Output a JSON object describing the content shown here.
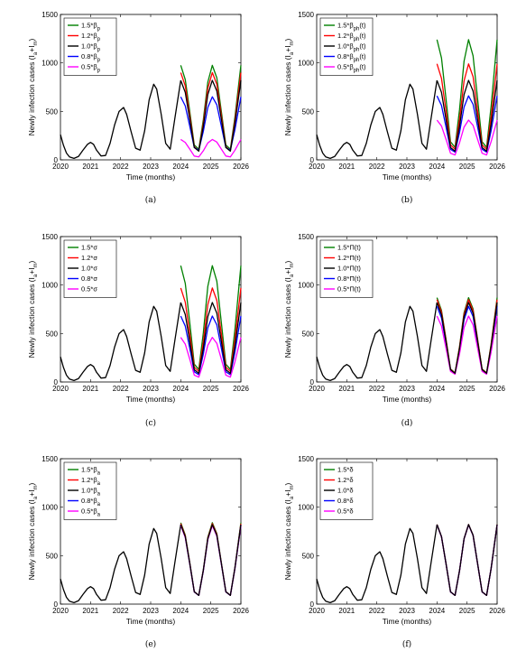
{
  "chart_data": [
    {
      "type": "line",
      "caption": "(a)",
      "xlabel": "Time (months)",
      "ylabel": "Newly infection cases (I_a+I_m)",
      "xlim": [
        2020,
        2026
      ],
      "ylim": [
        0,
        1500
      ],
      "xticks": [
        "2020",
        "2021",
        "2022",
        "2023",
        "2024",
        "2025",
        "2026"
      ],
      "yticks": [
        "0",
        "500",
        "1000",
        "1500"
      ],
      "legend_position": "top-left",
      "series": [
        {
          "name": "1.5*β_p",
          "color": "#008000",
          "peak": 975,
          "trough": 110
        },
        {
          "name": "1.2*β_p",
          "color": "#ff0000",
          "peak": 900,
          "trough": 95
        },
        {
          "name": "1.0*β_p",
          "color": "#000000",
          "peak": 820,
          "trough": 90
        },
        {
          "name": "0.8*β_p",
          "color": "#0000ff",
          "peak": 650,
          "trough": 100
        },
        {
          "name": "0.5*β_p",
          "color": "#ff00ff",
          "peak": 210,
          "trough": 30
        }
      ]
    },
    {
      "type": "line",
      "caption": "(b)",
      "xlabel": "Time (months)",
      "ylabel": "Newly infection cases (I_a+I_m)",
      "xlim": [
        2020,
        2026
      ],
      "ylim": [
        0,
        1500
      ],
      "xticks": [
        "2020",
        "2021",
        "2022",
        "2023",
        "2024",
        "2025",
        "2026"
      ],
      "yticks": [
        "0",
        "500",
        "1000",
        "1500"
      ],
      "legend_position": "top-left",
      "series": [
        {
          "name": "1.5*β_ph(t)",
          "color": "#008000",
          "peak": 1240,
          "trough": 130
        },
        {
          "name": "1.2*β_ph(t)",
          "color": "#ff0000",
          "peak": 990,
          "trough": 110
        },
        {
          "name": "1.0*β_ph(t)",
          "color": "#000000",
          "peak": 820,
          "trough": 90
        },
        {
          "name": "0.8*β_ph(t)",
          "color": "#0000ff",
          "peak": 660,
          "trough": 80
        },
        {
          "name": "0.5*β_ph(t)",
          "color": "#ff00ff",
          "peak": 410,
          "trough": 50
        }
      ]
    },
    {
      "type": "line",
      "caption": "(c)",
      "xlabel": "Time (months)",
      "ylabel": "Newly infection cases (I_a+I_m)",
      "xlim": [
        2020,
        2026
      ],
      "ylim": [
        0,
        1500
      ],
      "xticks": [
        "2020",
        "2021",
        "2022",
        "2023",
        "2024",
        "2025",
        "2026"
      ],
      "yticks": [
        "0",
        "500",
        "1000",
        "1500"
      ],
      "legend_position": "top-left",
      "series": [
        {
          "name": "1.5*σ",
          "color": "#008000",
          "peak": 1200,
          "trough": 130
        },
        {
          "name": "1.2*σ",
          "color": "#ff0000",
          "peak": 970,
          "trough": 110
        },
        {
          "name": "1.0*σ",
          "color": "#000000",
          "peak": 820,
          "trough": 90
        },
        {
          "name": "0.8*σ",
          "color": "#0000ff",
          "peak": 680,
          "trough": 75
        },
        {
          "name": "0.5*σ",
          "color": "#ff00ff",
          "peak": 460,
          "trough": 50
        }
      ]
    },
    {
      "type": "line",
      "caption": "(d)",
      "xlabel": "Time (months)",
      "ylabel": "Newly infection cases (I_a+I_m)",
      "xlim": [
        2020,
        2026
      ],
      "ylim": [
        0,
        1500
      ],
      "xticks": [
        "2020",
        "2021",
        "2022",
        "2023",
        "2024",
        "2025",
        "2026"
      ],
      "yticks": [
        "0",
        "500",
        "1000",
        "1500"
      ],
      "legend_position": "top-left",
      "series": [
        {
          "name": "1.5*Π(t)",
          "color": "#008000",
          "peak": 870,
          "trough": 95
        },
        {
          "name": "1.2*Π(t)",
          "color": "#ff0000",
          "peak": 850,
          "trough": 92
        },
        {
          "name": "1.0*Π(t)",
          "color": "#000000",
          "peak": 820,
          "trough": 90
        },
        {
          "name": "0.8*Π(t)",
          "color": "#0000ff",
          "peak": 780,
          "trough": 85
        },
        {
          "name": "0.5*Π(t)",
          "color": "#ff00ff",
          "peak": 680,
          "trough": 80
        }
      ]
    },
    {
      "type": "line",
      "caption": "(e)",
      "xlabel": "Time (months)",
      "ylabel": "Newly infection cases (I_a+I_m)",
      "xlim": [
        2020,
        2026
      ],
      "ylim": [
        0,
        1500
      ],
      "xticks": [
        "2020",
        "2021",
        "2022",
        "2023",
        "2024",
        "2025",
        "2026"
      ],
      "yticks": [
        "0",
        "500",
        "1000",
        "1500"
      ],
      "legend_position": "top-left",
      "series": [
        {
          "name": "1.5*β_a",
          "color": "#008000",
          "peak": 840,
          "trough": 92
        },
        {
          "name": "1.2*β_a",
          "color": "#ff0000",
          "peak": 830,
          "trough": 91
        },
        {
          "name": "1.0*β_a",
          "color": "#000000",
          "peak": 820,
          "trough": 90
        },
        {
          "name": "0.8*β_a",
          "color": "#0000ff",
          "peak": 815,
          "trough": 90
        },
        {
          "name": "0.5*β_a",
          "color": "#ff00ff",
          "peak": 810,
          "trough": 90
        }
      ]
    },
    {
      "type": "line",
      "caption": "(f)",
      "xlabel": "Time (months)",
      "ylabel": "Newly infection cases (I_a+I_m)",
      "xlim": [
        2020,
        2026
      ],
      "ylim": [
        0,
        1500
      ],
      "xticks": [
        "2020",
        "2021",
        "2022",
        "2023",
        "2024",
        "2025",
        "2026"
      ],
      "yticks": [
        "0",
        "500",
        "1000",
        "1500"
      ],
      "legend_position": "top-left",
      "series": [
        {
          "name": "1.5*δ",
          "color": "#008000",
          "peak": 822,
          "trough": 90
        },
        {
          "name": "1.2*δ",
          "color": "#ff0000",
          "peak": 821,
          "trough": 90
        },
        {
          "name": "1.0*δ",
          "color": "#000000",
          "peak": 820,
          "trough": 90
        },
        {
          "name": "0.8*δ",
          "color": "#0000ff",
          "peak": 819,
          "trough": 90
        },
        {
          "name": "0.5*δ",
          "color": "#ff00ff",
          "peak": 818,
          "trough": 90
        }
      ]
    }
  ],
  "baseline": {
    "x": [
      2020.0,
      2020.1,
      2020.2,
      2020.3,
      2020.45,
      2020.6,
      2020.75,
      2020.9,
      2021.0,
      2021.1,
      2021.2,
      2021.35,
      2021.5,
      2021.65,
      2021.8,
      2021.95,
      2022.1,
      2022.2,
      2022.35,
      2022.5,
      2022.65,
      2022.8,
      2022.95,
      2023.1,
      2023.2,
      2023.35,
      2023.5,
      2023.65,
      2023.8,
      2024.0
    ],
    "y": [
      260,
      150,
      70,
      30,
      15,
      35,
      100,
      160,
      180,
      160,
      100,
      40,
      45,
      170,
      360,
      500,
      540,
      470,
      290,
      120,
      100,
      300,
      620,
      780,
      730,
      470,
      170,
      110,
      420,
      820
    ]
  },
  "baseline_name": "1.0",
  "projection_shape": {
    "x": [
      2024.0,
      2024.15,
      2024.3,
      2024.45,
      2024.6,
      2024.75,
      2024.9,
      2025.05,
      2025.2,
      2025.35,
      2025.5,
      2025.65,
      2025.8,
      2026.0
    ],
    "u": [
      1.0,
      0.83,
      0.45,
      0.05,
      0.0,
      0.35,
      0.8,
      1.0,
      0.85,
      0.45,
      0.05,
      0.0,
      0.38,
      1.0
    ]
  }
}
